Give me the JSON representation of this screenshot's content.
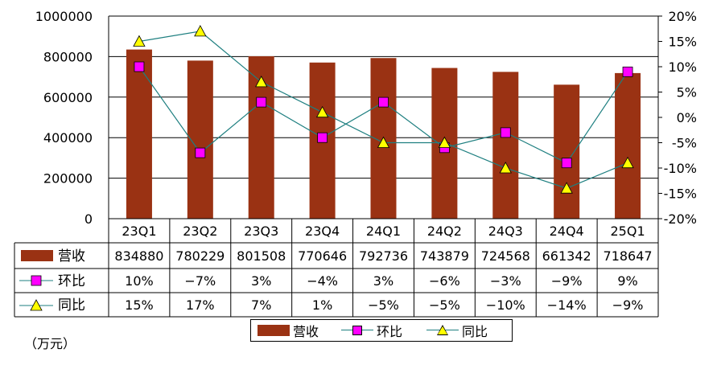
{
  "chart_data": {
    "type": "bar+line",
    "categories": [
      "23Q1",
      "23Q2",
      "23Q3",
      "23Q4",
      "24Q1",
      "24Q2",
      "24Q3",
      "24Q4",
      "25Q1"
    ],
    "bar_series": {
      "name": "营收",
      "values": [
        834880,
        780229,
        801508,
        770646,
        792736,
        743879,
        724568,
        661342,
        718647
      ],
      "color": "#9a3213"
    },
    "line_series": [
      {
        "name": "环比",
        "values": [
          10,
          -7,
          3,
          -4,
          3,
          -6,
          -3,
          -9,
          9
        ],
        "labels": [
          "10%",
          "−7%",
          "3%",
          "−4%",
          "3%",
          "−6%",
          "−3%",
          "−9%",
          "9%"
        ],
        "marker": "square",
        "marker_color": "#ff00ff",
        "line_color": "#1e7f80"
      },
      {
        "name": "同比",
        "values": [
          15,
          17,
          7,
          1,
          -5,
          -5,
          -10,
          -14,
          -9
        ],
        "labels": [
          "15%",
          "17%",
          "7%",
          "1%",
          "−5%",
          "−5%",
          "−10%",
          "−14%",
          "−9%"
        ],
        "marker": "triangle",
        "marker_color": "#ffff00",
        "line_color": "#1e7f80"
      }
    ],
    "y_left": {
      "min": 0,
      "max": 1000000,
      "ticks": [
        "0",
        "200000",
        "400000",
        "600000",
        "800000",
        "1000000"
      ]
    },
    "y_right": {
      "min": -20,
      "max": 20,
      "ticks": [
        "-20%",
        "-15%",
        "-10%",
        "-5%",
        "0%",
        "5%",
        "10%",
        "15%",
        "20%"
      ]
    },
    "grid": true,
    "legend_position": "bottom",
    "data_table": true
  },
  "unit": "（万元）",
  "legend": {
    "bar": "营收",
    "line1": "环比",
    "line2": "同比"
  }
}
